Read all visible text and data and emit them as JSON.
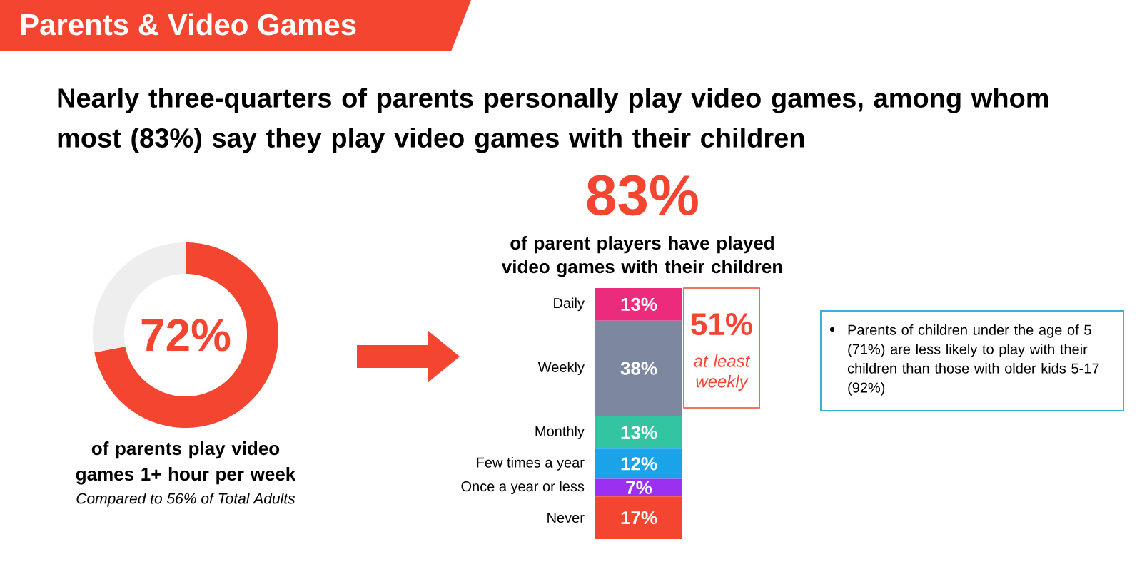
{
  "chart_data": [
    {
      "type": "other",
      "title": "Parents & Video Games",
      "subtitle": "Nearly three-quarters of parents personally play video games, among whom most (83%) say they play video games with their children"
    },
    {
      "type": "donut",
      "categories": [
        null,
        null
      ],
      "values": [
        72,
        28
      ],
      "colors": [
        "#f44530",
        "#eeeeee"
      ],
      "value_labels": [
        "72%",
        null
      ],
      "subtitle": "of parents play video games 1+ hour per week",
      "annotations": [
        "Compared to 56% of Total Adults"
      ]
    },
    {
      "type": "bar",
      "stacked": true,
      "legend": false,
      "categories": [
        null
      ],
      "title": "83%",
      "subtitle": "of parent players have played video games with their children",
      "annotations": [
        "51%",
        "at least weekly"
      ],
      "series": [
        {
          "name": "Never",
          "color": "#f44530",
          "values": [
            17
          ],
          "value_labels": [
            "17%"
          ]
        },
        {
          "name": "Once a year or less",
          "color": "#9b30f0",
          "values": [
            7
          ],
          "value_labels": [
            "7%"
          ]
        },
        {
          "name": "Few times a year",
          "color": "#1aa3e8",
          "values": [
            12
          ],
          "value_labels": [
            "12%"
          ]
        },
        {
          "name": "Monthly",
          "color": "#33c4a2",
          "values": [
            13
          ],
          "value_labels": [
            "13%"
          ]
        },
        {
          "name": "Weekly",
          "color": "#7d879f",
          "values": [
            38
          ],
          "value_labels": [
            "38%"
          ]
        },
        {
          "name": "Daily",
          "color": "#ec2b7c",
          "values": [
            13
          ],
          "value_labels": [
            "13%"
          ]
        }
      ]
    },
    {
      "type": "other",
      "annotations": [
        "Parents of children under the age of 5 (71%) are less likely to play with their children than those with older kids 5-17 (92%)"
      ]
    }
  ]
}
